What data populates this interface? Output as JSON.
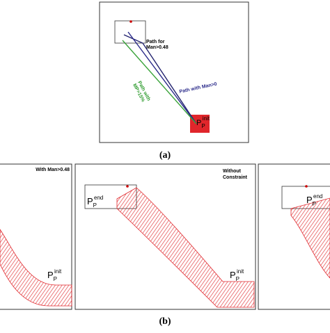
{
  "panel_a": {
    "caption": "(a)",
    "path_for_man": [
      "Path for",
      "Man>0.48"
    ],
    "path_mp": [
      "Path with",
      "MP>15%"
    ],
    "path_man0": "Path with Man>0",
    "point": {
      "base": "P",
      "sub": "P",
      "sup": "init"
    }
  },
  "panel_b": {
    "caption": "(b)",
    "panels": [
      {
        "title": [
          "With Man>0.48"
        ],
        "init": {
          "base": "P",
          "sub": "P",
          "sup": "init"
        }
      },
      {
        "title": [
          "Without",
          "Constraint"
        ],
        "end": {
          "base": "P",
          "sub": "P",
          "sup": "end"
        },
        "init": {
          "base": "P",
          "sub": "P",
          "sup": "init"
        }
      },
      {
        "end": {
          "base": "P",
          "sub": "P",
          "sup": "end"
        }
      }
    ]
  }
}
